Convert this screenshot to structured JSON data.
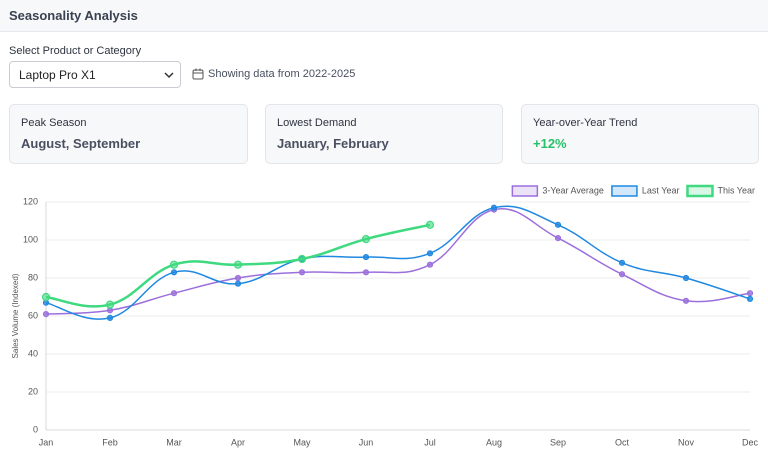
{
  "header": {
    "title": "Seasonality Analysis"
  },
  "filters": {
    "label": "Select Product or Category",
    "selected": "Laptop Pro X1",
    "date_range": "Showing data from 2022-2025"
  },
  "cards": [
    {
      "label": "Peak Season",
      "value": "August, September"
    },
    {
      "label": "Lowest Demand",
      "value": "January, February"
    },
    {
      "label": "Year-over-Year Trend",
      "value": "+12%"
    }
  ],
  "chart_data": {
    "type": "line",
    "ylabel": "Sales Volume (Indexed)",
    "categories": [
      "Jan",
      "Feb",
      "Mar",
      "Apr",
      "May",
      "Jun",
      "Jul",
      "Aug",
      "Sep",
      "Oct",
      "Nov",
      "Dec"
    ],
    "series": [
      {
        "name": "3-Year Average",
        "color": "#9b6fdc",
        "values": [
          61,
          63,
          72,
          80,
          83,
          83,
          87,
          116,
          101,
          82,
          68,
          72
        ]
      },
      {
        "name": "Last Year",
        "color": "#1f88e0",
        "values": [
          67,
          59,
          83,
          77,
          90,
          91,
          93,
          117,
          108,
          88,
          80,
          69
        ]
      },
      {
        "name": "This Year",
        "color": "#3fd97f",
        "values": [
          70,
          66,
          87,
          87,
          90,
          100.5,
          108,
          null,
          null,
          null,
          null,
          null
        ]
      }
    ],
    "ylim": [
      0,
      120
    ],
    "yticks": [
      0,
      20,
      40,
      60,
      80,
      100,
      120
    ],
    "grid": true,
    "legend": "top-right"
  }
}
